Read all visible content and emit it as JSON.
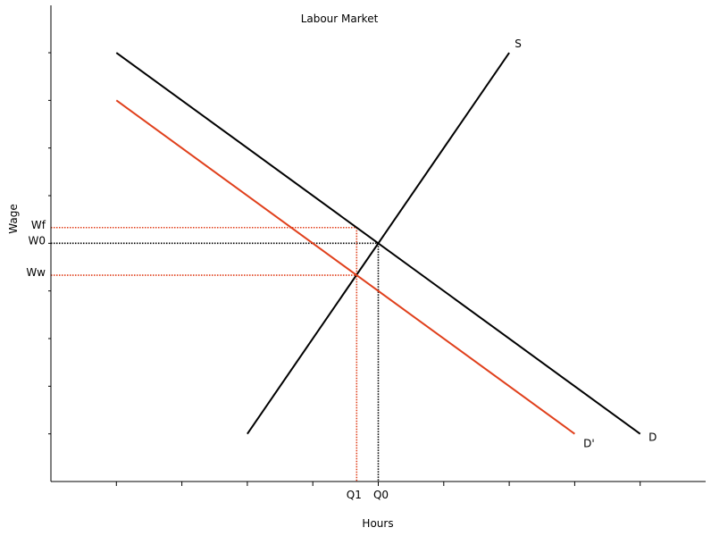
{
  "chart_data": {
    "type": "line",
    "title": "Labour Market",
    "xlabel": "Hours",
    "ylabel": "Wage",
    "xlim": [
      0,
      10
    ],
    "ylim": [
      0,
      10
    ],
    "grid": false,
    "colors": {
      "base": "#000000",
      "shifted": "#e0401c"
    },
    "series": [
      {
        "name": "S",
        "color": "#000000",
        "x": [
          3,
          7
        ],
        "y": [
          1,
          9
        ]
      },
      {
        "name": "D",
        "color": "#000000",
        "x": [
          1,
          9
        ],
        "y": [
          9,
          1
        ]
      },
      {
        "name": "D'",
        "color": "#e0401c",
        "x": [
          1,
          8
        ],
        "y": [
          8,
          1
        ]
      }
    ],
    "guides": [
      {
        "label": "Wf",
        "axis": "y",
        "x": 4.67,
        "y": 5.33,
        "color": "#e0401c"
      },
      {
        "label": "W0",
        "axis": "y",
        "x": 5.0,
        "y": 5.0,
        "color": "#000000"
      },
      {
        "label": "Ww",
        "axis": "y",
        "x": 4.67,
        "y": 4.33,
        "color": "#e0401c"
      },
      {
        "label": "Q1",
        "axis": "x",
        "x": 4.67,
        "y": 5.33,
        "color": "#e0401c"
      },
      {
        "label": "Q0",
        "axis": "x",
        "x": 5.0,
        "y": 5.0,
        "color": "#000000"
      }
    ]
  }
}
